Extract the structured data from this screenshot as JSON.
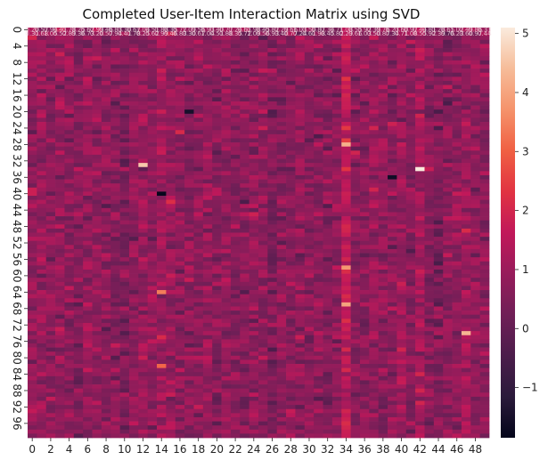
{
  "chart_data": {
    "type": "heatmap",
    "title": "Completed User-Item Interaction Matrix using SVD",
    "xlabel": "",
    "ylabel": "",
    "rows": 100,
    "cols": 50,
    "x_tick_labels": [
      "0",
      "2",
      "4",
      "6",
      "8",
      "10",
      "12",
      "14",
      "16",
      "18",
      "20",
      "22",
      "24",
      "26",
      "28",
      "30",
      "32",
      "34",
      "36",
      "38",
      "40",
      "42",
      "44",
      "46",
      "48"
    ],
    "y_tick_labels": [
      "0",
      "4",
      "8",
      "12",
      "16",
      "20",
      "24",
      "28",
      "32",
      "36",
      "40",
      "44",
      "48",
      "52",
      "56",
      "60",
      "64",
      "68",
      "72",
      "76",
      "80",
      "84",
      "88",
      "92",
      "96"
    ],
    "value_range": [
      -1.85,
      5.1
    ],
    "colorbar_ticks": [
      "5",
      "4",
      "3",
      "2",
      "1",
      "0",
      "−1"
    ],
    "colorbar_tick_values": [
      5,
      4,
      3,
      2,
      1,
      0,
      -1
    ],
    "colormap": "rocket",
    "colormap_stops": [
      "#03051a",
      "#2b1a3b",
      "#4c1d4b",
      "#701f57",
      "#971c5b",
      "#c1185a",
      "#e13342",
      "#f06043",
      "#f5936b",
      "#f6bc99",
      "#faebdd"
    ],
    "grid": false,
    "colorbar_position": "right",
    "cell_annotations": "illegible overlapping values rendered over top rows",
    "notable_cells": [
      {
        "row": 28,
        "col": 34,
        "value": 4.2
      },
      {
        "row": 33,
        "col": 12,
        "value": 4.6
      },
      {
        "row": 34,
        "col": 42,
        "value": 5.1
      },
      {
        "row": 58,
        "col": 34,
        "value": 3.8
      },
      {
        "row": 64,
        "col": 14,
        "value": 3.4
      },
      {
        "row": 67,
        "col": 34,
        "value": 4.0
      },
      {
        "row": 74,
        "col": 47,
        "value": 4.3
      },
      {
        "row": 82,
        "col": 14,
        "value": 3.1
      },
      {
        "row": 40,
        "col": 14,
        "value": -1.8
      },
      {
        "row": 36,
        "col": 39,
        "value": -1.6
      },
      {
        "row": 20,
        "col": 17,
        "value": -1.5
      }
    ]
  }
}
